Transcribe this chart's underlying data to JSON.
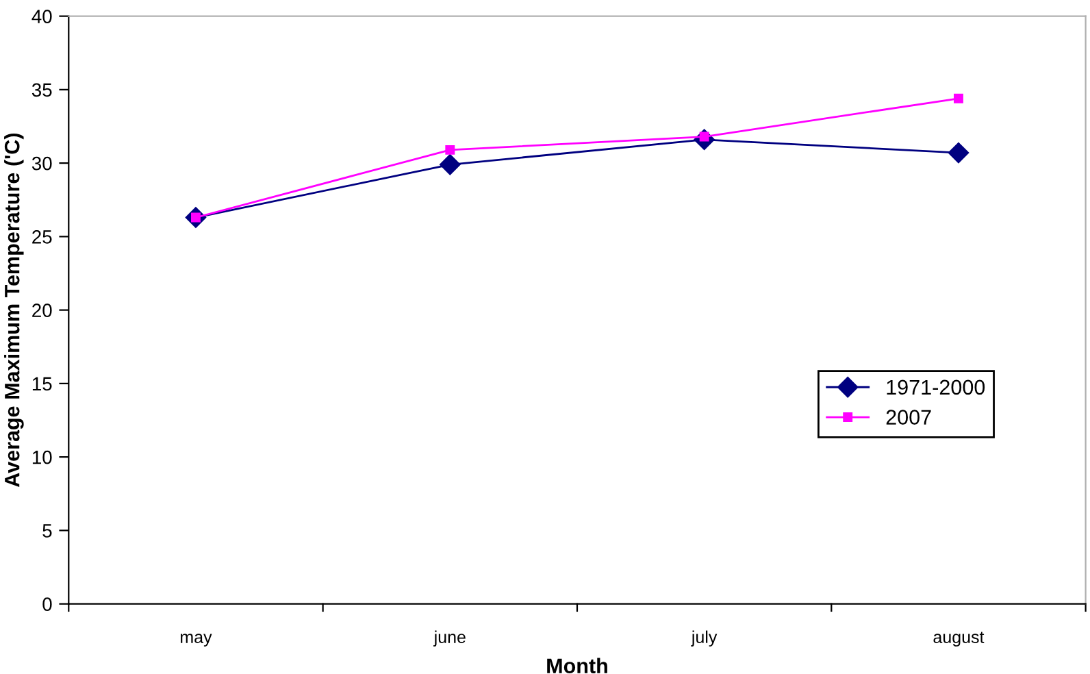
{
  "chart_data": {
    "type": "line",
    "xlabel": "Month",
    "ylabel": "Average Maximum Temperature ('C)",
    "categories": [
      "may",
      "june",
      "july",
      "august"
    ],
    "series": [
      {
        "name": "1971-2000",
        "color": "#000080",
        "marker": "diamond",
        "values": [
          26.3,
          29.9,
          31.6,
          30.7
        ]
      },
      {
        "name": "2007",
        "color": "#ff00ff",
        "marker": "square",
        "values": [
          26.3,
          30.9,
          31.8,
          34.4
        ]
      }
    ],
    "ylim": [
      0,
      40
    ],
    "yticks": [
      0,
      5,
      10,
      15,
      20,
      25,
      30,
      35,
      40
    ],
    "grid": false,
    "legend": "right",
    "line_style": "solid"
  }
}
